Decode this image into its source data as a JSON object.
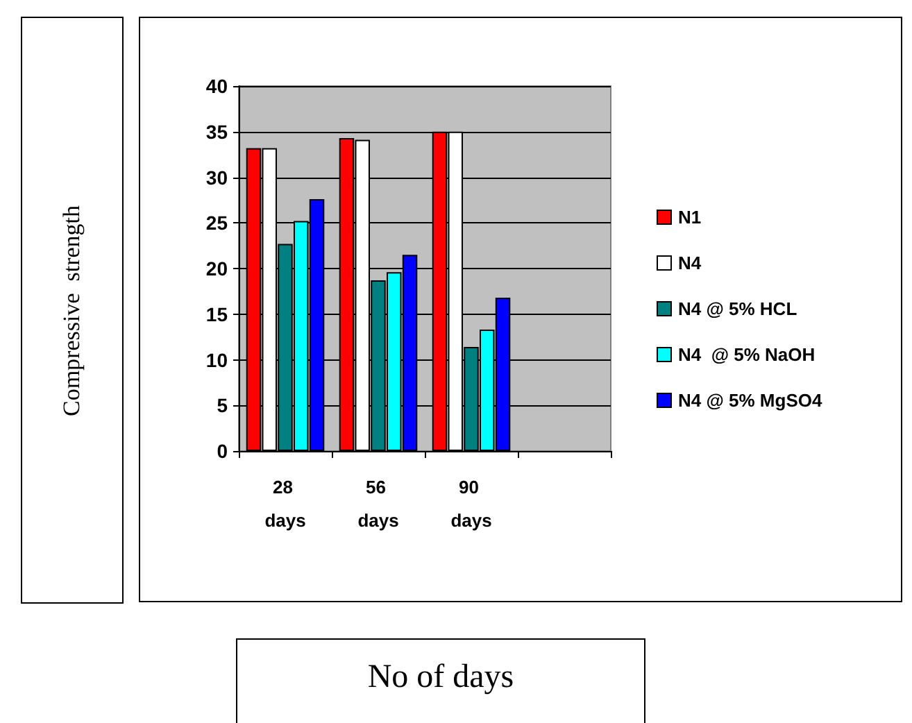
{
  "chart_data": {
    "type": "bar",
    "xlabel": "No of days",
    "annotations": [
      "Compressive  strength"
    ],
    "categories": [
      "28 days",
      "56 days",
      "90 days",
      null
    ],
    "series": [
      {
        "name": "N1",
        "color": "#ff0000",
        "values": [
          33.2,
          34.3,
          35,
          null
        ]
      },
      {
        "name": "N4",
        "color": "#ffffff",
        "values": [
          33.2,
          34.1,
          35,
          null
        ]
      },
      {
        "name": "N4 @ 5% HCL",
        "color": "#008080",
        "values": [
          22.7,
          18.7,
          11.4,
          null
        ]
      },
      {
        "name": "N4  @ 5% NaOH",
        "color": "#00ffff",
        "values": [
          25.2,
          19.6,
          13.3,
          null
        ]
      },
      {
        "name": "N4 @ 5% MgSO4",
        "color": "#0000ff",
        "values": [
          27.6,
          21.5,
          16.8,
          null
        ]
      }
    ],
    "ylim": [
      0,
      40
    ],
    "yticks": [
      0,
      5,
      10,
      15,
      20,
      25,
      30,
      35,
      40
    ],
    "grid": "y",
    "legend": "right"
  }
}
